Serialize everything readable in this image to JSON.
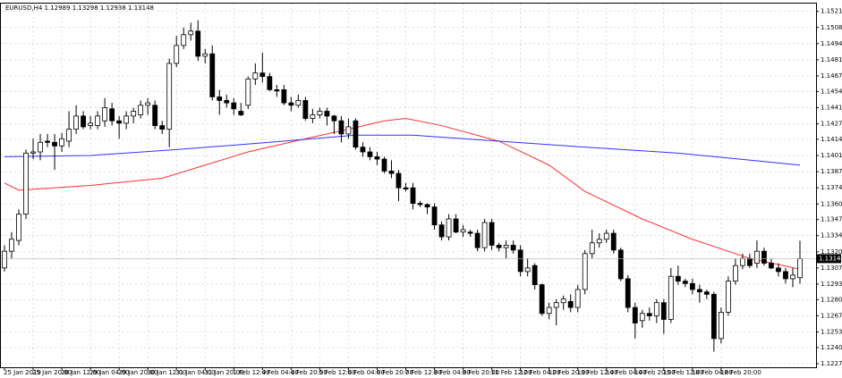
{
  "chart_data": {
    "type": "candlestick",
    "title": "EURUSD,H4  1.12989 1.13298 1.12938 1.13148",
    "ylim": [
      1.1224,
      1.1528
    ],
    "yticks": [
      1.15215,
      {
        "value": 1.1508,
        "label": "1.15080"
      },
      1.14945,
      {
        "value": 1.1481,
        "label": "1.14810"
      },
      1.14675,
      1.14545,
      {
        "value": 1.1441,
        "label": "1.14410"
      },
      1.14275,
      1.14145,
      {
        "value": 1.1401,
        "label": "1.14010"
      },
      1.13875,
      {
        "value": 1.1374,
        "label": "1.13740"
      },
      1.13605,
      1.13475,
      {
        "value": 1.1334,
        "label": "1.13340"
      },
      1.13205,
      {
        "value": 1.1307,
        "label": "1.13070"
      },
      1.12935,
      1.12805,
      {
        "value": 1.1267,
        "label": "1.12670"
      },
      1.12535,
      1.12405,
      {
        "value": 1.1227,
        "label": "1.12270"
      }
    ],
    "grid": true,
    "x_labels": [
      "25 Jan 2019",
      "25 Jan 20:00",
      "28 Jan 12:00",
      "29 Jan 04:00",
      "29 Jan 20:00",
      "30 Jan 12:00",
      "31 Jan 04:00",
      "31 Jan 20:00",
      "1 Feb 12:00",
      "4 Feb 04:00",
      "4 Feb 20:00",
      "5 Feb 12:00",
      "6 Feb 04:00",
      "6 Feb 20:00",
      "7 Feb 12:00",
      "8 Feb 04:00",
      "8 Feb 20:00",
      "11 Feb 12:00",
      "12 Feb 04:00",
      "12 Feb 20:00",
      "13 Feb 12:00",
      "14 Feb 04:00",
      "14 Feb 20:00",
      "15 Feb 12:00",
      "18 Feb 04:00",
      "18 Feb 20:00"
    ],
    "bull_color": "#ffffff",
    "bear_color": "#000000",
    "candles": [
      [
        1.1307,
        1.1326,
        1.1304,
        1.1321
      ],
      [
        1.1321,
        1.1337,
        1.1315,
        1.1331
      ],
      [
        1.133,
        1.1356,
        1.1326,
        1.1352
      ],
      [
        1.1352,
        1.1406,
        1.1348,
        1.1403
      ],
      [
        1.1403,
        1.1415,
        1.1398,
        1.1404
      ],
      [
        1.1404,
        1.1419,
        1.1397,
        1.1412
      ],
      [
        1.1413,
        1.1419,
        1.1408,
        1.1412
      ],
      [
        1.1412,
        1.1419,
        1.1389,
        1.1409
      ],
      [
        1.1409,
        1.142,
        1.1404,
        1.1415
      ],
      [
        1.1413,
        1.1438,
        1.1408,
        1.1423
      ],
      [
        1.1423,
        1.1443,
        1.1419,
        1.1434
      ],
      [
        1.1434,
        1.1438,
        1.1423,
        1.1425
      ],
      [
        1.1426,
        1.1434,
        1.1423,
        1.1428
      ],
      [
        1.1426,
        1.1438,
        1.1423,
        1.1434
      ],
      [
        1.143,
        1.1449,
        1.1425,
        1.1441
      ],
      [
        1.144,
        1.1445,
        1.1426,
        1.143
      ],
      [
        1.143,
        1.1434,
        1.1415,
        1.1428
      ],
      [
        1.1428,
        1.1438,
        1.1423,
        1.1434
      ],
      [
        1.1434,
        1.1441,
        1.1428,
        1.1438
      ],
      [
        1.1435,
        1.1447,
        1.1432,
        1.1443
      ],
      [
        1.1443,
        1.1449,
        1.1435,
        1.1445
      ],
      [
        1.1443,
        1.1447,
        1.1423,
        1.1426
      ],
      [
        1.1426,
        1.143,
        1.1419,
        1.1423
      ],
      [
        1.1423,
        1.1482,
        1.1408,
        1.1478
      ],
      [
        1.1478,
        1.1501,
        1.1475,
        1.1493
      ],
      [
        1.1493,
        1.1508,
        1.149,
        1.1502
      ],
      [
        1.1502,
        1.1512,
        1.1497,
        1.1505
      ],
      [
        1.1505,
        1.1514,
        1.148,
        1.1484
      ],
      [
        1.1484,
        1.149,
        1.1478,
        1.1486
      ],
      [
        1.1486,
        1.1493,
        1.1447,
        1.145
      ],
      [
        1.145,
        1.1456,
        1.1435,
        1.1447
      ],
      [
        1.1447,
        1.1452,
        1.1441,
        1.1445
      ],
      [
        1.1445,
        1.1449,
        1.1435,
        1.144
      ],
      [
        1.1438,
        1.1445,
        1.1434,
        1.1435
      ],
      [
        1.1443,
        1.1467,
        1.144,
        1.1465
      ],
      [
        1.1465,
        1.1478,
        1.146,
        1.147
      ],
      [
        1.147,
        1.1487,
        1.1462,
        1.1467
      ],
      [
        1.1467,
        1.147,
        1.1455,
        1.1456
      ],
      [
        1.1456,
        1.146,
        1.145,
        1.1455
      ],
      [
        1.1456,
        1.146,
        1.1443,
        1.1445
      ],
      [
        1.1445,
        1.145,
        1.1438,
        1.1443
      ],
      [
        1.1443,
        1.1452,
        1.1441,
        1.1447
      ],
      [
        1.1447,
        1.145,
        1.143,
        1.1432
      ],
      [
        1.1432,
        1.144,
        1.1428,
        1.1435
      ],
      [
        1.1435,
        1.1441,
        1.1432,
        1.1438
      ],
      [
        1.1438,
        1.1441,
        1.1426,
        1.1434
      ],
      [
        1.1434,
        1.1435,
        1.1419,
        1.143
      ],
      [
        1.143,
        1.1434,
        1.1412,
        1.1419
      ],
      [
        1.1419,
        1.1432,
        1.1415,
        1.1425
      ],
      [
        1.143,
        1.1432,
        1.1406,
        1.1408
      ],
      [
        1.1408,
        1.1412,
        1.14,
        1.1404
      ],
      [
        1.1404,
        1.1408,
        1.1397,
        1.14
      ],
      [
        1.14,
        1.1404,
        1.1393,
        1.1398
      ],
      [
        1.1398,
        1.14,
        1.1386,
        1.1388
      ],
      [
        1.1388,
        1.1397,
        1.1382,
        1.1386
      ],
      [
        1.1386,
        1.1389,
        1.1363,
        1.1374
      ],
      [
        1.1374,
        1.1378,
        1.1371,
        1.1373
      ],
      [
        1.1374,
        1.1378,
        1.1356,
        1.1361
      ],
      [
        1.1361,
        1.1363,
        1.1358,
        1.136
      ],
      [
        1.136,
        1.1361,
        1.1352,
        1.1358
      ],
      [
        1.1358,
        1.1361,
        1.1339,
        1.1343
      ],
      [
        1.1343,
        1.1346,
        1.133,
        1.1333
      ],
      [
        1.1333,
        1.1352,
        1.133,
        1.1348
      ],
      [
        1.1348,
        1.1352,
        1.1336,
        1.1337
      ],
      [
        1.1337,
        1.1343,
        1.1333,
        1.1339
      ],
      [
        1.1337,
        1.1339,
        1.1333,
        1.1336
      ],
      [
        1.1336,
        1.1339,
        1.1321,
        1.1324
      ],
      [
        1.1324,
        1.1348,
        1.1321,
        1.1345
      ],
      [
        1.1345,
        1.1348,
        1.1322,
        1.1326
      ],
      [
        1.1326,
        1.1328,
        1.1321,
        1.1324
      ],
      [
        1.1324,
        1.133,
        1.1315,
        1.1326
      ],
      [
        1.1326,
        1.133,
        1.1319,
        1.1322
      ],
      [
        1.1322,
        1.1326,
        1.13,
        1.1304
      ],
      [
        1.1304,
        1.1315,
        1.13,
        1.1307
      ],
      [
        1.1309,
        1.1311,
        1.1289,
        1.1293
      ],
      [
        1.1293,
        1.1294,
        1.1267,
        1.1269
      ],
      [
        1.1269,
        1.1278,
        1.1264,
        1.1274
      ],
      [
        1.1274,
        1.1281,
        1.1259,
        1.1278
      ],
      [
        1.1278,
        1.1284,
        1.1272,
        1.1281
      ],
      [
        1.1279,
        1.1285,
        1.127,
        1.1274
      ],
      [
        1.1274,
        1.1293,
        1.127,
        1.1289
      ],
      [
        1.1289,
        1.1322,
        1.1285,
        1.1319
      ],
      [
        1.1319,
        1.1339,
        1.1315,
        1.1328
      ],
      [
        1.1328,
        1.1336,
        1.1324,
        1.1331
      ],
      [
        1.1331,
        1.1339,
        1.1328,
        1.1336
      ],
      [
        1.1336,
        1.1339,
        1.1319,
        1.1322
      ],
      [
        1.1322,
        1.1324,
        1.1296,
        1.1298
      ],
      [
        1.1298,
        1.1301,
        1.127,
        1.1274
      ],
      [
        1.1274,
        1.1278,
        1.1248,
        1.1261
      ],
      [
        1.1263,
        1.1272,
        1.1257,
        1.1269
      ],
      [
        1.1269,
        1.1274,
        1.1263,
        1.1267
      ],
      [
        1.1267,
        1.1281,
        1.1261,
        1.1278
      ],
      [
        1.1278,
        1.1281,
        1.1252,
        1.1264
      ],
      [
        1.1264,
        1.1307,
        1.1261,
        1.13
      ],
      [
        1.13,
        1.1309,
        1.1293,
        1.1296
      ],
      [
        1.1296,
        1.1298,
        1.1291,
        1.1294
      ],
      [
        1.1294,
        1.1298,
        1.1285,
        1.1289
      ],
      [
        1.1289,
        1.1293,
        1.1278,
        1.1287
      ],
      [
        1.1287,
        1.1289,
        1.1281,
        1.1285
      ],
      [
        1.1285,
        1.1287,
        1.1237,
        1.1248
      ],
      [
        1.1248,
        1.1274,
        1.1244,
        1.127
      ],
      [
        1.127,
        1.13,
        1.1267,
        1.1296
      ],
      [
        1.1296,
        1.1315,
        1.1293,
        1.1309
      ],
      [
        1.1309,
        1.1319,
        1.1306,
        1.1315
      ],
      [
        1.1315,
        1.1319,
        1.1307,
        1.1309
      ],
      [
        1.1311,
        1.133,
        1.1307,
        1.1321
      ],
      [
        1.1321,
        1.1324,
        1.1309,
        1.1311
      ],
      [
        1.1311,
        1.1315,
        1.1306,
        1.1307
      ],
      [
        1.1307,
        1.1311,
        1.13,
        1.1304
      ],
      [
        1.1304,
        1.1307,
        1.1294,
        1.1298
      ],
      [
        1.1298,
        1.1307,
        1.1291,
        1.1301
      ],
      [
        1.12989,
        1.13298,
        1.12938,
        1.13148
      ]
    ],
    "lines": [
      {
        "color": "#ff3030",
        "x": [
          0,
          2,
          12,
          22,
          28,
          34,
          42,
          48,
          53,
          56,
          61,
          69,
          76,
          81,
          89,
          96,
          104,
          111
        ],
        "values": [
          1.1378,
          1.1372,
          1.1376,
          1.1382,
          1.1393,
          1.1404,
          1.1415,
          1.1423,
          1.143,
          1.1432,
          1.1426,
          1.1413,
          1.1393,
          1.1371,
          1.1348,
          1.1331,
          1.1315,
          1.1306
        ]
      },
      {
        "color": "#3030ff",
        "x": [
          0,
          12,
          24,
          37,
          49,
          57,
          69,
          81,
          94,
          106,
          111
        ],
        "values": [
          1.14,
          1.1401,
          1.1406,
          1.1412,
          1.1418,
          1.1418,
          1.1413,
          1.1408,
          1.1403,
          1.1396,
          1.1393
        ]
      }
    ]
  }
}
